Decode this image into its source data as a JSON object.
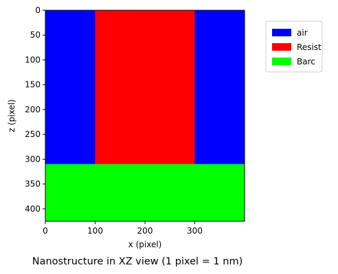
{
  "chart_data": {
    "type": "heatmap",
    "caption": "Nanostructure in XZ view (1 pixel = 1 nm)",
    "xlabel": "x (pixel)",
    "ylabel": "z (pixel)",
    "xlim": [
      0,
      400
    ],
    "ylim": [
      0,
      425
    ],
    "y_inverted": true,
    "xticks": [
      0,
      100,
      200,
      300
    ],
    "yticks": [
      0,
      50,
      100,
      150,
      200,
      250,
      300,
      350,
      400
    ],
    "grid": false,
    "legend_position": "upper-right-outside",
    "legend": [
      {
        "name": "air",
        "color": "#0000ff"
      },
      {
        "name": "Resist",
        "color": "#ff0000"
      },
      {
        "name": "Barc",
        "color": "#00ff00"
      }
    ],
    "regions": [
      {
        "material": "air",
        "x": [
          0,
          100
        ],
        "z": [
          0,
          310
        ]
      },
      {
        "material": "Resist",
        "x": [
          100,
          300
        ],
        "z": [
          0,
          310
        ]
      },
      {
        "material": "air",
        "x": [
          300,
          400
        ],
        "z": [
          0,
          310
        ]
      },
      {
        "material": "Barc",
        "x": [
          0,
          400
        ],
        "z": [
          310,
          425
        ]
      }
    ]
  }
}
